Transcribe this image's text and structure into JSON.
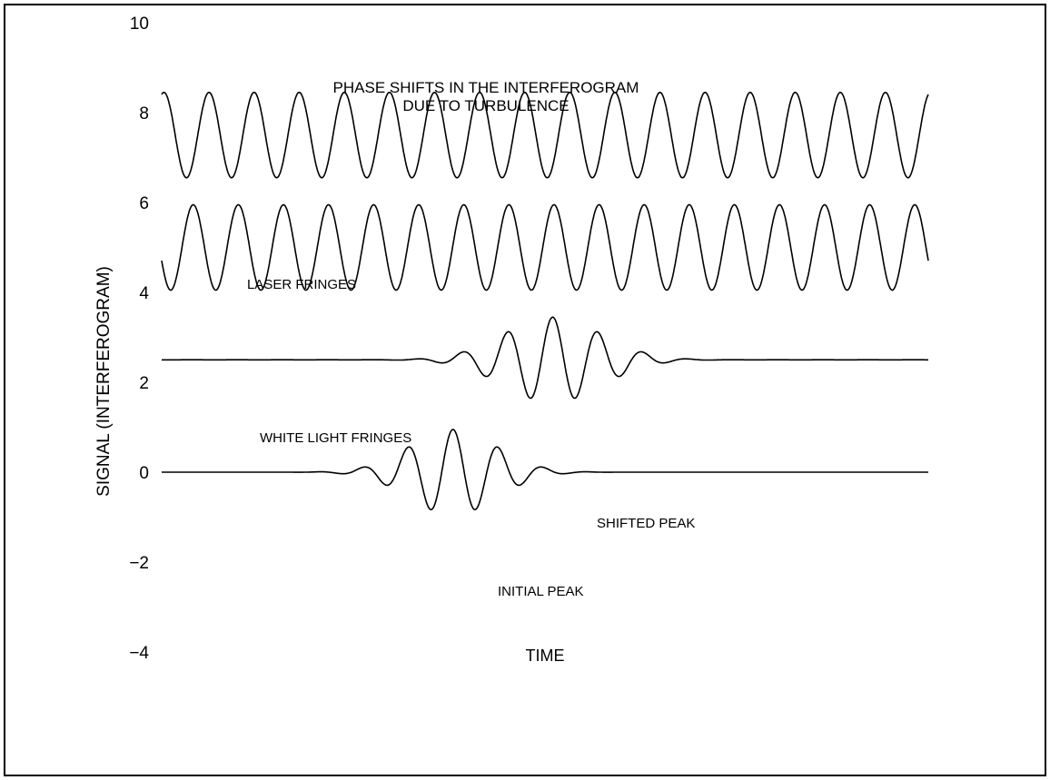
{
  "chart_data": {
    "type": "line",
    "title_line1": "PHASE SHIFTS IN THE INTERFEROGRAM",
    "title_line2": "DUE TO TURBULENCE",
    "xlabel": "TIME",
    "ylabel": "SIGNAL (INTERFEROGRAM)",
    "ylim": [
      -4,
      10
    ],
    "yticks": [
      10,
      8,
      6,
      4,
      2,
      0,
      -2,
      -4
    ],
    "ytick_labels": [
      "10",
      "8",
      "6",
      "4",
      "2",
      "0",
      "−2",
      "−4"
    ],
    "grid": false,
    "annotations": {
      "laser": "LASER FRINGES",
      "white": "WHITE LIGHT FRINGES",
      "shifted": "SHIFTED PEAK",
      "initial": "INITIAL PEAK"
    },
    "series": [
      {
        "kind": "sine",
        "offset": 7.5,
        "amplitude": 0.95,
        "cycles": 17,
        "phase": 0.2
      },
      {
        "kind": "sine",
        "offset": 5.0,
        "amplitude": 0.95,
        "cycles": 17,
        "phase": 0.55
      },
      {
        "kind": "wavepacket",
        "offset": 2.5,
        "amplitude": 0.95,
        "center": 0.51,
        "width": 0.09,
        "cycles": 17,
        "phase": 0.5
      },
      {
        "kind": "wavepacket",
        "offset": 0.0,
        "amplitude": 0.95,
        "center": 0.38,
        "width": 0.08,
        "cycles": 17,
        "phase": 0.5
      }
    ]
  }
}
